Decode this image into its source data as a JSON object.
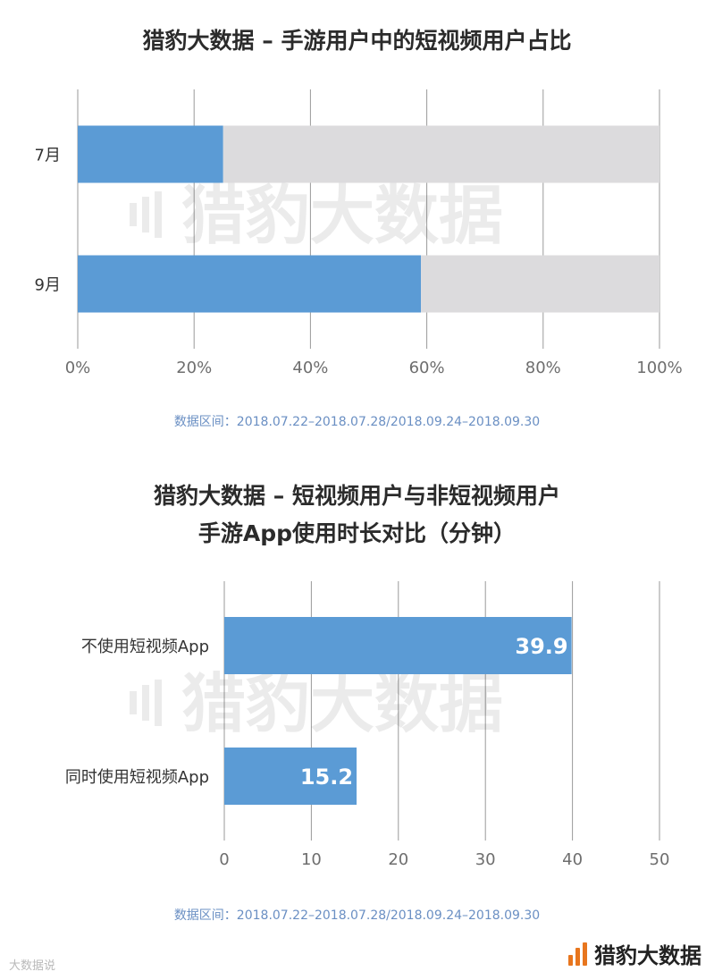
{
  "chart_data": [
    {
      "type": "bar",
      "orientation": "horizontal",
      "stacked": true,
      "title": "猎豹大数据 – 手游用户中的短视频用户占比",
      "categories": [
        "7月",
        "9月"
      ],
      "series": [
        {
          "values": [
            25,
            59
          ],
          "color": "#5b9bd5"
        },
        {
          "values": [
            75,
            41
          ],
          "color": "#dcdbdd"
        }
      ],
      "xlim": [
        0,
        100
      ],
      "xticks": [
        0,
        20,
        40,
        60,
        80,
        100
      ],
      "xtick_labels": [
        "0%",
        "20%",
        "40%",
        "60%",
        "80%",
        "100%"
      ],
      "grid": true,
      "note": "数据区间：2018.07.22–2018.07.28/2018.09.24–2018.09.30"
    },
    {
      "type": "bar",
      "orientation": "horizontal",
      "title_lines": [
        "猎豹大数据 – 短视频用户与非短视频用户",
        "手游App使用时长对比（分钟）"
      ],
      "categories": [
        "不使用短视频App",
        "同时使用短视频App"
      ],
      "values": [
        39.9,
        15.2
      ],
      "data_labels": [
        "39.9",
        "15.2"
      ],
      "color": "#5b9bd5",
      "xlim": [
        0,
        50
      ],
      "xticks": [
        0,
        10,
        20,
        30,
        40,
        50
      ],
      "xtick_labels": [
        "0",
        "10",
        "20",
        "30",
        "40",
        "50"
      ],
      "grid": true,
      "note": "数据区间：2018.07.22–2018.07.28/2018.09.24–2018.09.30"
    }
  ],
  "watermark": "猎豹大数据",
  "brand": {
    "name": "猎豹大数据",
    "color": "#e8761e"
  },
  "corner_watermark": "大数据说"
}
